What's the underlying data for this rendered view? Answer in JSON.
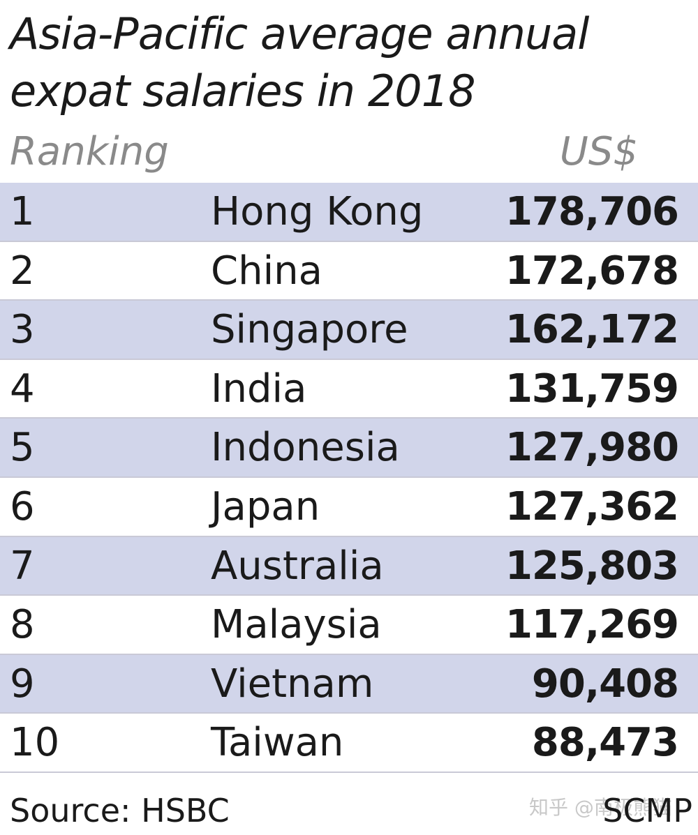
{
  "chart_data": {
    "type": "table",
    "title": "Asia-Pacific average annual expat salaries in 2018",
    "columns": [
      "Ranking",
      "US$"
    ],
    "rows": [
      {
        "rank": "1",
        "country": "Hong Kong",
        "value": "178,706"
      },
      {
        "rank": "2",
        "country": "China",
        "value": "172,678"
      },
      {
        "rank": "3",
        "country": "Singapore",
        "value": "162,172"
      },
      {
        "rank": "4",
        "country": "India",
        "value": "131,759"
      },
      {
        "rank": "5",
        "country": "Indonesia",
        "value": "127,980"
      },
      {
        "rank": "6",
        "country": "Japan",
        "value": "127,362"
      },
      {
        "rank": "7",
        "country": "Australia",
        "value": "125,803"
      },
      {
        "rank": "8",
        "country": "Malaysia",
        "value": "117,269"
      },
      {
        "rank": "9",
        "country": "Vietnam",
        "value": "90,408"
      },
      {
        "rank": "10",
        "country": "Taiwan",
        "value": "88,473"
      }
    ],
    "source": "Source: HSBC",
    "credit": "SCMP"
  },
  "colors": {
    "row_shade": "#d1d5ea",
    "header_text": "#8a8a8a",
    "text": "#1a1a1a"
  },
  "watermark": "知乎 @南极熊猫"
}
